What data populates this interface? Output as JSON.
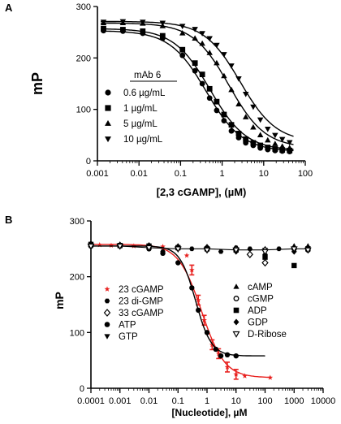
{
  "chart_data": [
    {
      "panel": "A",
      "type": "scatter",
      "xscale": "log",
      "xlabel": "[2,3 cGAMP], (µM)",
      "ylabel": "mP",
      "xlim": [
        0.001,
        100
      ],
      "ylim": [
        0,
        300
      ],
      "x_ticks": [
        "0.001",
        "0.01",
        "0.1",
        "1",
        "10",
        "100"
      ],
      "y_ticks": [
        "0",
        "100",
        "200",
        "300"
      ],
      "legend_title": "mAb 6",
      "legend_position": "center-left",
      "x": [
        0.0014,
        0.0041,
        0.0123,
        0.037,
        0.111,
        0.222,
        0.333,
        0.5,
        0.74,
        1.11,
        1.67,
        2.5,
        3.7,
        5.6,
        8.3,
        12.5,
        18.8,
        28,
        42
      ],
      "series": [
        {
          "name": "0.6 µg/mL",
          "marker": "circle",
          "values": [
            253,
            252,
            248,
            238,
            205,
            175,
            150,
            122,
            98,
            78,
            58,
            45,
            35,
            30,
            25,
            22,
            20,
            19,
            18
          ]
        },
        {
          "name": "1 µg/mL",
          "marker": "square",
          "values": [
            257,
            255,
            252,
            243,
            216,
            190,
            168,
            140,
            115,
            90,
            70,
            53,
            42,
            35,
            30,
            26,
            23,
            21,
            20
          ]
        },
        {
          "name": "5 µg/mL",
          "marker": "triangle-up",
          "values": [
            268,
            268,
            267,
            262,
            248,
            238,
            228,
            210,
            190,
            165,
            138,
            110,
            85,
            65,
            50,
            40,
            33,
            28,
            25
          ]
        },
        {
          "name": "10 µg/mL",
          "marker": "triangle-down",
          "values": [
            270,
            271,
            270,
            268,
            262,
            256,
            248,
            238,
            225,
            207,
            185,
            160,
            130,
            105,
            80,
            62,
            50,
            42,
            36
          ]
        }
      ]
    },
    {
      "panel": "B",
      "type": "scatter",
      "xscale": "log",
      "xlabel": "[Nucleotide], µM",
      "ylabel": "mP",
      "xlim": [
        0.0001,
        10000
      ],
      "ylim": [
        0,
        300
      ],
      "x_ticks": [
        "0.0001",
        "0.001",
        "0.01",
        "0.1",
        "1",
        "10",
        "100",
        "1000",
        "10000"
      ],
      "y_ticks": [
        "0",
        "100",
        "200",
        "300"
      ],
      "legend_position": "center",
      "series": [
        {
          "name": "23 cGAMP",
          "color": "#e8201e",
          "marker": "star",
          "x": [
            0.0001,
            0.0002,
            0.0005,
            0.001,
            0.003,
            0.01,
            0.03,
            0.1,
            0.2,
            0.3,
            0.5,
            0.8,
            1.5,
            2.5,
            5,
            10,
            20,
            150
          ],
          "values": [
            258,
            257,
            256,
            255,
            255,
            255,
            254,
            250,
            238,
            212,
            158,
            122,
            78,
            62,
            38,
            25,
            22,
            19
          ]
        },
        {
          "name": "23 di-GMP",
          "marker": "hexagon",
          "x": [
            0.0001,
            0.001,
            0.01,
            0.03,
            0.1,
            0.3,
            1,
            3,
            10,
            30,
            100,
            300
          ],
          "values": [
            258,
            255,
            250,
            245,
            252,
            250,
            248,
            245,
            252,
            250,
            248,
            250
          ]
        },
        {
          "name": "33 cGAMP",
          "marker": "diamond-open",
          "x": [
            0.0001,
            0.001,
            0.01,
            0.1,
            1,
            10,
            30,
            100
          ],
          "values": [
            258,
            256,
            255,
            253,
            252,
            250,
            240,
            225
          ]
        },
        {
          "name": "ATP",
          "marker": "circle",
          "x": [
            0.0001,
            0.01,
            0.03,
            0.1,
            0.3,
            0.5,
            1,
            2,
            3,
            5,
            10
          ],
          "values": [
            255,
            250,
            242,
            225,
            180,
            140,
            100,
            70,
            58,
            60,
            58
          ]
        },
        {
          "name": "GTP",
          "marker": "triangle-down",
          "x": [
            0.0001,
            0.001,
            0.01,
            0.1,
            1,
            10,
            100,
            1000,
            3000
          ],
          "values": [
            255,
            255,
            252,
            250,
            250,
            248,
            248,
            250,
            250
          ]
        },
        {
          "name": "cAMP",
          "marker": "triangle-up",
          "x": [
            0.0001,
            0.001,
            0.01,
            0.1,
            1,
            10,
            100,
            1000,
            3000
          ],
          "values": [
            260,
            258,
            255,
            255,
            252,
            250,
            250,
            255,
            255
          ]
        },
        {
          "name": "cGMP",
          "marker": "circle-open",
          "x": [
            0.0001,
            0.001,
            0.01,
            0.1,
            1,
            10,
            100,
            1000,
            3000
          ],
          "values": [
            255,
            255,
            255,
            252,
            250,
            250,
            248,
            250,
            248
          ]
        },
        {
          "name": "ADP",
          "marker": "square",
          "x": [
            0.0001,
            0.001,
            0.01,
            0.1,
            1,
            10,
            100,
            1000,
            3000
          ],
          "values": [
            258,
            256,
            255,
            252,
            250,
            248,
            235,
            220,
            250
          ]
        },
        {
          "name": "GDP",
          "marker": "diamond",
          "x": [
            0.0001,
            0.001,
            0.01,
            0.1,
            1,
            10,
            100,
            1000,
            3000
          ],
          "values": [
            255,
            255,
            252,
            250,
            248,
            245,
            240,
            245,
            250
          ]
        },
        {
          "name": "D-Ribose",
          "marker": "triangle-down-open",
          "x": [
            0.0001,
            0.001,
            0.01,
            0.1,
            1,
            10,
            100,
            1000,
            3000
          ],
          "values": [
            255,
            255,
            252,
            250,
            248,
            248,
            245,
            250,
            248
          ]
        }
      ]
    }
  ]
}
